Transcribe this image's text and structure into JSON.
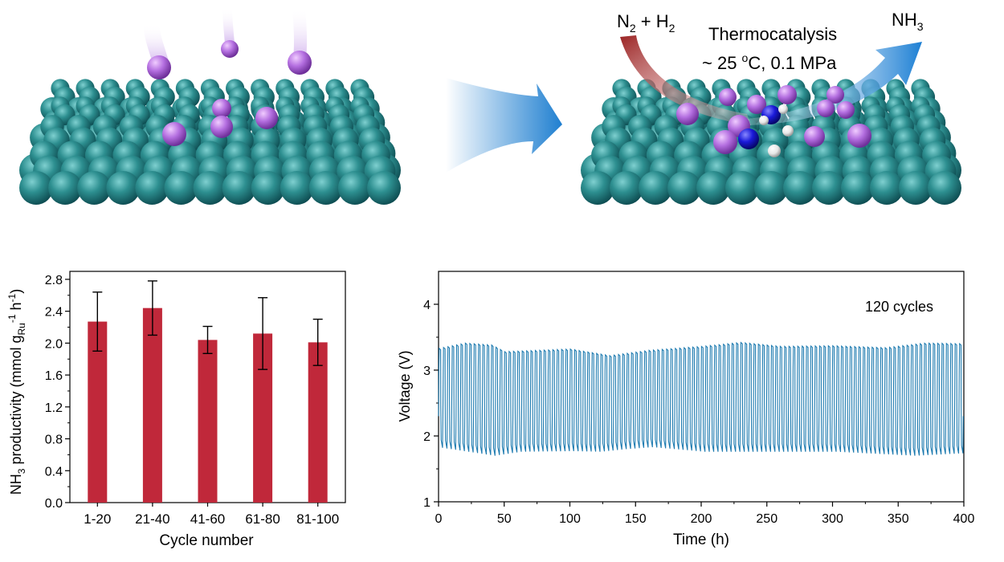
{
  "scheme": {
    "reaction_left": [
      "N",
      "2",
      " + H",
      "2"
    ],
    "reaction_right": [
      "NH",
      "3"
    ],
    "process": "Thermocatalysis",
    "conditions": [
      "~ 25 ",
      "o",
      "C, 0.1 MPa"
    ],
    "colors": {
      "support": "#2b8c8c",
      "ru_cluster": "#b46fe0",
      "nitrogen": "#1a1ad9",
      "hydrogen": "#f2f2f2",
      "arrow_in": "#a83232",
      "arrow_out": "#1c7fd4"
    }
  },
  "chart_data": [
    {
      "type": "bar",
      "categories": [
        "1-20",
        "21-40",
        "41-60",
        "61-80",
        "81-100"
      ],
      "values": [
        2.27,
        2.44,
        2.04,
        2.12,
        2.01
      ],
      "errors": [
        0.37,
        0.34,
        0.17,
        0.45,
        0.29
      ],
      "xlabel": "Cycle number",
      "ylabel": [
        "NH",
        "3",
        " productivity (mmol g",
        "Ru",
        "-1",
        " h",
        "-1",
        ")"
      ],
      "ylim": [
        0,
        2.9
      ],
      "yticks": [
        "0.0",
        "0.4",
        "0.8",
        "1.2",
        "1.6",
        "2.0",
        "2.4",
        "2.8"
      ],
      "bar_color": "#c0283a",
      "grid": false
    },
    {
      "type": "line",
      "xlabel": "Time (h)",
      "ylabel": "Voltage (V)",
      "annotation": "120 cycles",
      "xlim": [
        0,
        400
      ],
      "ylim": [
        1,
        4.5
      ],
      "xticks": [
        "0",
        "50",
        "100",
        "150",
        "200",
        "250",
        "300",
        "350",
        "400"
      ],
      "yticks": [
        "1",
        "2",
        "3",
        "4"
      ],
      "cycles": 120,
      "period_h": 3.33,
      "upper_V": [
        [
          0,
          3.33
        ],
        [
          20,
          3.41
        ],
        [
          40,
          3.38
        ],
        [
          50,
          3.28
        ],
        [
          100,
          3.32
        ],
        [
          130,
          3.22
        ],
        [
          160,
          3.3
        ],
        [
          200,
          3.36
        ],
        [
          230,
          3.42
        ],
        [
          260,
          3.36
        ],
        [
          300,
          3.37
        ],
        [
          340,
          3.34
        ],
        [
          370,
          3.41
        ],
        [
          400,
          3.4
        ]
      ],
      "lower_V": [
        [
          0,
          1.82
        ],
        [
          20,
          1.76
        ],
        [
          40,
          1.7
        ],
        [
          60,
          1.76
        ],
        [
          100,
          1.77
        ],
        [
          120,
          1.76
        ],
        [
          140,
          1.8
        ],
        [
          160,
          1.83
        ],
        [
          200,
          1.76
        ],
        [
          240,
          1.76
        ],
        [
          300,
          1.76
        ],
        [
          340,
          1.72
        ],
        [
          360,
          1.7
        ],
        [
          400,
          1.74
        ]
      ],
      "line_color": "#1e7bb0",
      "grid": false
    }
  ]
}
